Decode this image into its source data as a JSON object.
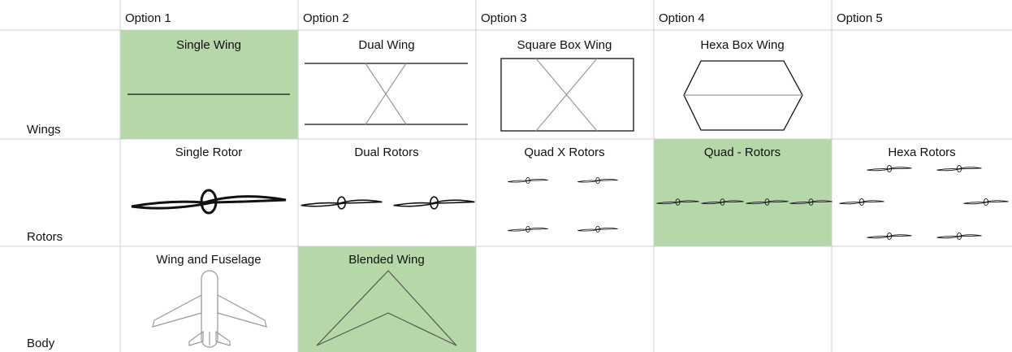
{
  "table": {
    "columns": [
      "Option 1",
      "Option 2",
      "Option 3",
      "Option 4",
      "Option 5"
    ],
    "rows": [
      {
        "label": "Wings",
        "cells": [
          "Single Wing",
          "Dual Wing",
          "Square Box Wing",
          "Hexa Box Wing",
          null
        ]
      },
      {
        "label": "Rotors",
        "cells": [
          "Single Rotor",
          "Dual Rotors",
          "Quad X Rotors",
          "Quad - Rotors",
          "Hexa Rotors"
        ]
      },
      {
        "label": "Body",
        "cells": [
          "Wing and Fuselage",
          "Blended Wing",
          null,
          null,
          null
        ]
      }
    ]
  }
}
